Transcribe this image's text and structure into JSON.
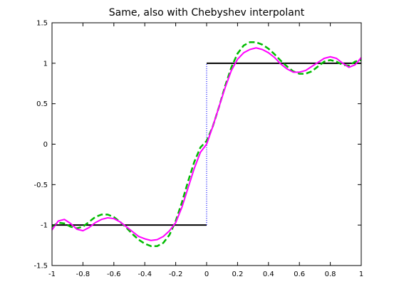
{
  "chart_data": {
    "type": "line",
    "title": "Same, also with Chebyshev interpolant",
    "xlabel": "",
    "ylabel": "",
    "xlim": [
      -1,
      1
    ],
    "ylim": [
      -1.5,
      1.5
    ],
    "x_ticks": [
      -1,
      -0.8,
      -0.6,
      -0.4,
      -0.2,
      0,
      0.2,
      0.4,
      0.6,
      0.8,
      1
    ],
    "x_tick_labels": [
      "-1",
      "-0.8",
      "-0.6",
      "-0.4",
      "-0.2",
      "0",
      "0.2",
      "0.4",
      "0.6",
      "0.8",
      "1"
    ],
    "y_ticks": [
      -1.5,
      -1,
      -0.5,
      0,
      0.5,
      1,
      1.5
    ],
    "y_tick_labels": [
      "-1.5",
      "-1",
      "-0.5",
      "0",
      "0.5",
      "1",
      "1.5"
    ],
    "grid": false,
    "legend": "none",
    "series": [
      {
        "color": "#000000",
        "style": "solid",
        "x": [
          -1,
          0
        ],
        "y": [
          -1,
          -1
        ]
      },
      {
        "color": "#000000",
        "style": "solid",
        "x": [
          0,
          1
        ],
        "y": [
          1,
          1
        ]
      },
      {
        "color": "#0000ff",
        "style": "dotted",
        "x": [
          0,
          0
        ],
        "y": [
          -1,
          1
        ]
      },
      {
        "color": "#00bb00",
        "style": "dashed",
        "x": [
          -1,
          -0.96,
          -0.92,
          -0.88,
          -0.84,
          -0.8,
          -0.76,
          -0.72,
          -0.68,
          -0.64,
          -0.6,
          -0.56,
          -0.52,
          -0.48,
          -0.44,
          -0.4,
          -0.36,
          -0.32,
          -0.28,
          -0.24,
          -0.2,
          -0.16,
          -0.12,
          -0.08,
          -0.04,
          0,
          0.04,
          0.08,
          0.12,
          0.16,
          0.2,
          0.24,
          0.28,
          0.32,
          0.36,
          0.4,
          0.44,
          0.48,
          0.52,
          0.56,
          0.6,
          0.64,
          0.68,
          0.72,
          0.76,
          0.8,
          0.84,
          0.88,
          0.92,
          0.96,
          1
        ],
        "y": [
          -1.02,
          -0.97,
          -0.98,
          -1.02,
          -1.04,
          -1.02,
          -0.96,
          -0.9,
          -0.87,
          -0.87,
          -0.9,
          -0.96,
          -1.03,
          -1.11,
          -1.18,
          -1.23,
          -1.26,
          -1.26,
          -1.22,
          -1.12,
          -0.95,
          -0.72,
          -0.46,
          -0.22,
          -0.04,
          0.04,
          0.22,
          0.46,
          0.72,
          0.95,
          1.12,
          1.22,
          1.26,
          1.26,
          1.23,
          1.18,
          1.11,
          1.03,
          0.96,
          0.9,
          0.87,
          0.87,
          0.9,
          0.96,
          1.02,
          1.04,
          1.02,
          0.98,
          0.97,
          1.02,
          1.04
        ]
      },
      {
        "color": "#ff00ff",
        "style": "solid",
        "x": [
          -1,
          -0.96,
          -0.92,
          -0.88,
          -0.84,
          -0.8,
          -0.76,
          -0.72,
          -0.68,
          -0.64,
          -0.6,
          -0.56,
          -0.52,
          -0.48,
          -0.44,
          -0.4,
          -0.36,
          -0.32,
          -0.28,
          -0.24,
          -0.2,
          -0.16,
          -0.12,
          -0.08,
          -0.04,
          0,
          0.04,
          0.08,
          0.12,
          0.16,
          0.2,
          0.24,
          0.28,
          0.32,
          0.36,
          0.4,
          0.44,
          0.48,
          0.52,
          0.56,
          0.6,
          0.64,
          0.68,
          0.72,
          0.76,
          0.8,
          0.84,
          0.88,
          0.92,
          0.96,
          1
        ],
        "y": [
          -1.06,
          -0.95,
          -0.93,
          -0.98,
          -1.05,
          -1.07,
          -1.03,
          -0.97,
          -0.93,
          -0.91,
          -0.92,
          -0.96,
          -1.02,
          -1.08,
          -1.14,
          -1.17,
          -1.19,
          -1.18,
          -1.14,
          -1.07,
          -0.97,
          -0.78,
          -0.54,
          -0.3,
          -0.1,
          0,
          0.22,
          0.46,
          0.7,
          0.91,
          1.05,
          1.13,
          1.17,
          1.19,
          1.17,
          1.13,
          1.07,
          0.99,
          0.93,
          0.89,
          0.89,
          0.91,
          0.96,
          1.01,
          1.06,
          1.08,
          1.06,
          1.0,
          0.95,
          0.98,
          1.07
        ]
      }
    ]
  }
}
